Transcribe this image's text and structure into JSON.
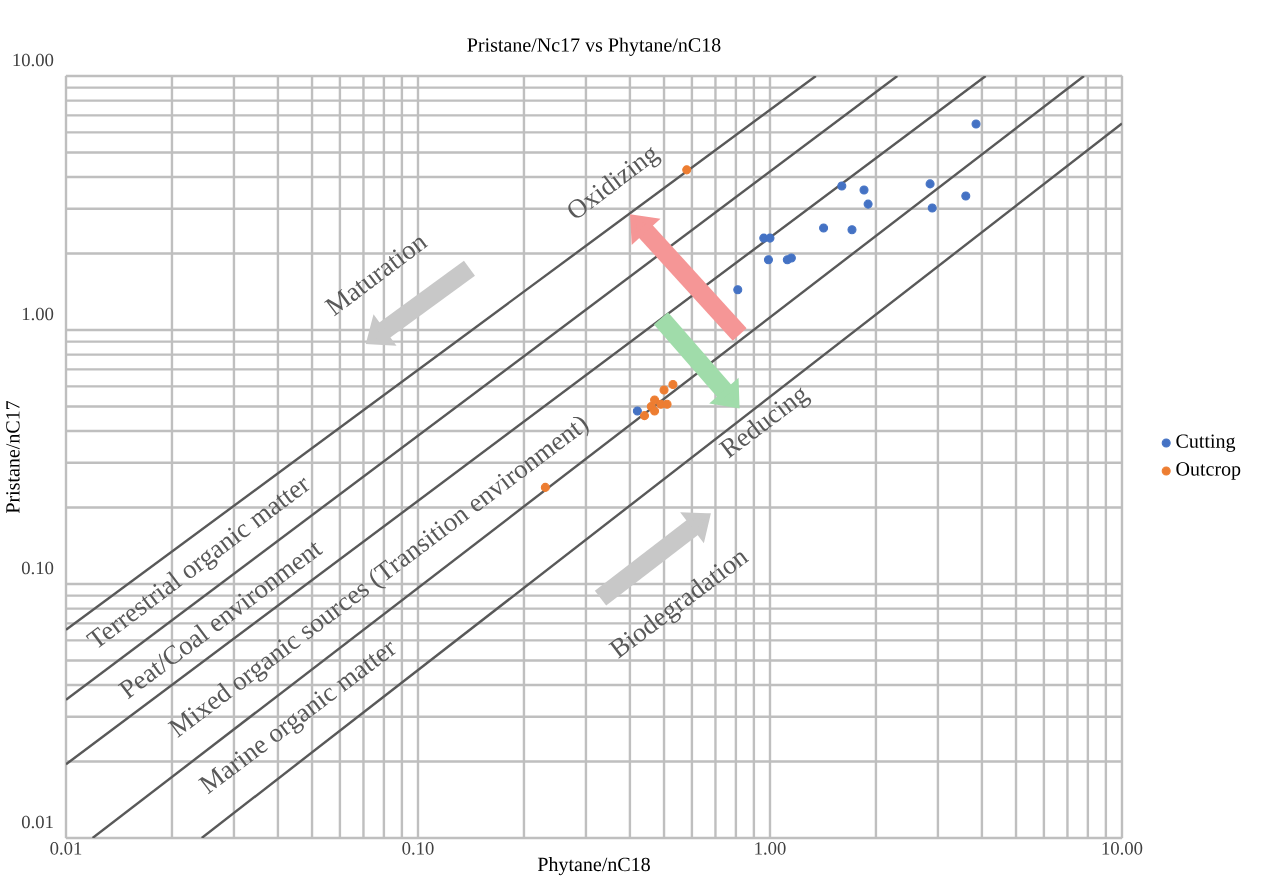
{
  "chart_data": {
    "type": "scatter",
    "title": "Pristane/Nc17  vs Phytane/nC18",
    "xlabel": "Phytane/nC18",
    "ylabel": "Pristane/nC17",
    "log": "xy",
    "grid": true,
    "legend": "right",
    "xlim": [
      0.01,
      10
    ],
    "ylim": [
      0.01,
      10
    ],
    "xticks": [
      {
        "value": 0.01,
        "label": "0.01"
      },
      {
        "value": 0.1,
        "label": "0.10"
      },
      {
        "value": 1,
        "label": "1.00"
      },
      {
        "value": 10,
        "label": "10.00"
      }
    ],
    "yticks": [
      {
        "value": 0.01,
        "label": "0.01"
      },
      {
        "value": 0.1,
        "label": "0.10"
      },
      {
        "value": 1,
        "label": "1.00"
      },
      {
        "value": 10,
        "label": "10.00"
      }
    ],
    "series": [
      {
        "name": "Cutting",
        "marker": "circle",
        "color": "#4472c4",
        "x": [
          3.85,
          1.6,
          1.85,
          1.9,
          2.85,
          2.89,
          3.6,
          1.42,
          1.71,
          0.96,
          1.0,
          0.99,
          1.12,
          1.15,
          0.81,
          0.42
        ],
        "values": [
          6.47,
          3.69,
          3.56,
          3.13,
          3.76,
          3.02,
          3.37,
          2.52,
          2.48,
          2.3,
          2.3,
          1.89,
          1.89,
          1.92,
          1.44,
          0.48
        ]
      },
      {
        "name": "Outcrop",
        "marker": "circle",
        "color": "#ed7d31",
        "x": [
          0.58,
          0.44,
          0.46,
          0.47,
          0.5,
          0.53,
          0.49,
          0.51,
          0.47,
          0.23
        ],
        "values": [
          4.27,
          0.46,
          0.5,
          0.53,
          0.58,
          0.61,
          0.51,
          0.51,
          0.48,
          0.24
        ]
      },
      {
        "type": "line",
        "marker": "none",
        "color": "#595959",
        "x": [
          0.01,
          1.35
        ],
        "values": [
          0.066,
          10
        ]
      },
      {
        "type": "line",
        "marker": "none",
        "color": "#595959",
        "x": [
          0.01,
          2.3
        ],
        "values": [
          0.035,
          10
        ]
      },
      {
        "type": "line",
        "marker": "none",
        "color": "#595959",
        "x": [
          0.01,
          4.1
        ],
        "values": [
          0.0195,
          10
        ]
      },
      {
        "type": "line",
        "marker": "none",
        "color": "#595959",
        "x": [
          0.0119,
          7.8
        ],
        "values": [
          0.01,
          10
        ]
      },
      {
        "type": "line",
        "marker": "none",
        "color": "#595959",
        "x": [
          0.0243,
          10
        ],
        "values": [
          0.01,
          6.5
        ]
      }
    ],
    "annotations": [
      "Terrestrial organic matter",
      "Peat/Coal environment",
      "Mixed organic sources (Transition environment)",
      "Marine organic matter",
      "Maturation",
      "Oxidizing",
      "Reducing",
      "Biodegradation"
    ]
  }
}
